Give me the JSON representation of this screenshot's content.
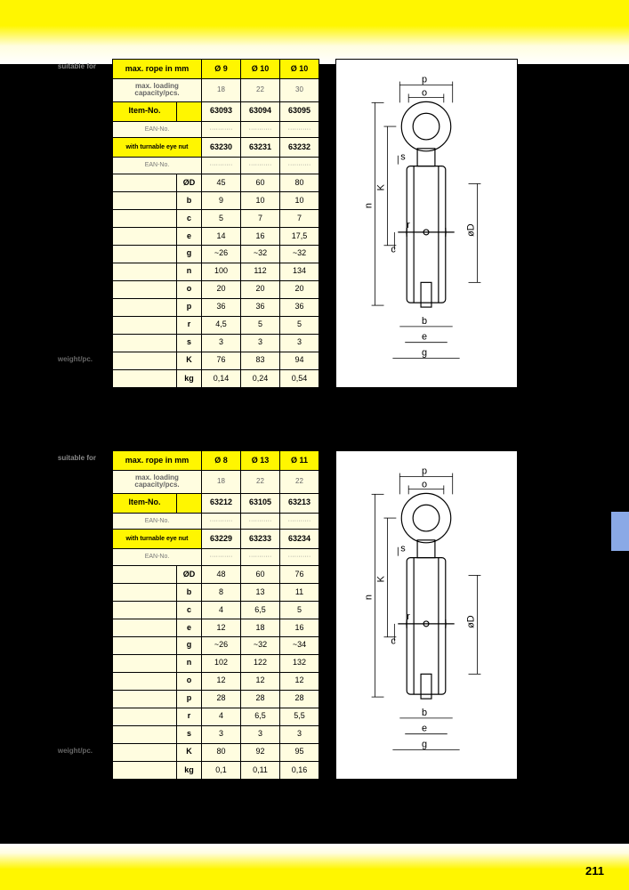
{
  "page_number": "211",
  "suitable_label": "suitable for",
  "table1": {
    "rope_hdr": "max. rope in mm",
    "rope": [
      "Ø 9",
      "Ø 10",
      "Ø 10"
    ],
    "load_hdr": "max. loading capacity/pcs.",
    "load": [
      "18",
      "22",
      "30"
    ],
    "item_hdr": "Item-No.",
    "items": [
      "63093",
      "63094",
      "63095"
    ],
    "ean_hdr": "EAN-No.",
    "eye_hdr": "with turnable eye nut",
    "eye": [
      "63230",
      "63231",
      "63232"
    ],
    "ean2_hdr": "EAN-No.",
    "dim_hdr": "ØD",
    "dims": {
      "ØD": [
        "45",
        "60",
        "80"
      ],
      "b": [
        "9",
        "10",
        "10"
      ],
      "c": [
        "5",
        "7",
        "7"
      ],
      "e": [
        "14",
        "16",
        "17,5"
      ],
      "g": [
        "~26",
        "~32",
        "~32"
      ],
      "n": [
        "100",
        "112",
        "134"
      ],
      "o": [
        "20",
        "20",
        "20"
      ],
      "p": [
        "36",
        "36",
        "36"
      ],
      "r": [
        "4,5",
        "5",
        "5"
      ],
      "s": [
        "3",
        "3",
        "3"
      ],
      "K": [
        "76",
        "83",
        "94"
      ]
    },
    "weight_hdr": "weight/pc.",
    "weight_unit": "kg",
    "weight": [
      "0,14",
      "0,24",
      "0,54"
    ]
  },
  "table2": {
    "rope_hdr": "max. rope in mm",
    "rope": [
      "Ø 8",
      "Ø 13",
      "Ø 11"
    ],
    "load_hdr": "max. loading capacity/pcs.",
    "load": [
      "18",
      "22",
      "22"
    ],
    "item_hdr": "Item-No.",
    "items": [
      "63212",
      "63105",
      "63213"
    ],
    "ean_hdr": "EAN-No.",
    "eye_hdr": "with turnable eye nut",
    "eye": [
      "63229",
      "63233",
      "63234"
    ],
    "ean2_hdr": "EAN-No.",
    "dim_hdr": "ØD",
    "dims": {
      "ØD": [
        "48",
        "60",
        "76"
      ],
      "b": [
        "8",
        "13",
        "11"
      ],
      "c": [
        "4",
        "6,5",
        "5"
      ],
      "e": [
        "12",
        "18",
        "16"
      ],
      "g": [
        "~26",
        "~32",
        "~34"
      ],
      "n": [
        "102",
        "122",
        "132"
      ],
      "o": [
        "12",
        "12",
        "12"
      ],
      "p": [
        "28",
        "28",
        "28"
      ],
      "r": [
        "4",
        "6,5",
        "5,5"
      ],
      "s": [
        "3",
        "3",
        "3"
      ],
      "K": [
        "80",
        "92",
        "95"
      ]
    },
    "weight_hdr": "weight/pc.",
    "weight_unit": "kg",
    "weight": [
      "0,1",
      "0,11",
      "0,16"
    ]
  },
  "diagram_labels": [
    "p",
    "o",
    "s",
    "K",
    "n",
    "r",
    "c",
    "øD",
    "b",
    "e",
    "g"
  ]
}
